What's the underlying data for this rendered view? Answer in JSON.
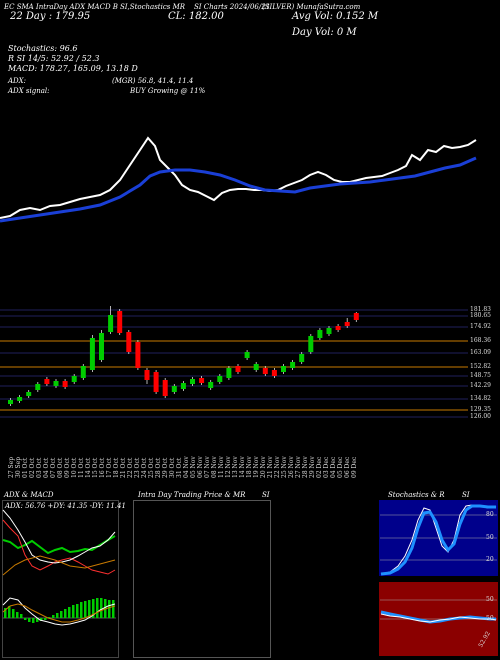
{
  "header": {
    "line1": "EC SMA IntraDay ADX MACD B",
    "line1_b": "SI,Stochastics MR",
    "line1_c": "SI Charts 2024/06/21",
    "line1_d": "(SILVER) MunafaSutra.com",
    "day_label": "22 Day : 179.95",
    "close_label": "CL: 182.00",
    "avg_vol": "Avg Vol: 0.152  M",
    "day_vol": "Day Vol: 0   M"
  },
  "indicators": {
    "stochastics": "Stochastics: 96.6",
    "rsi": "R        SI 14/5: 52.92 / 52.3",
    "macd": "MACD: 178.27, 165.09, 13.18  D",
    "adx": "ADX:",
    "adx_vals": "(MGR) 56.8, 41.4, 11.4",
    "adx_signal": "ADX signal:",
    "adx_signal_val": "BUY Growing @ 11%"
  },
  "price_axis": [
    "181.83",
    "180.65",
    "174.92",
    "168.36",
    "163.09",
    "152.82",
    "148.75",
    "142.29",
    "134.82",
    "129.35",
    "126.00"
  ],
  "dates": [
    "27 Sep",
    "30 Sep",
    "01 Oct",
    "02 Oct",
    "03 Oct",
    "04 Oct",
    "07 Oct",
    "08 Oct",
    "09 Oct",
    "10 Oct",
    "11 Oct",
    "14 Oct",
    "15 Oct",
    "16 Oct",
    "17 Oct",
    "18 Oct",
    "21 Oct",
    "22 Oct",
    "23 Oct",
    "24 Oct",
    "25 Oct",
    "28 Oct",
    "29 Oct",
    "30 Oct",
    "31 Oct",
    "04 Nov",
    "05 Nov",
    "06 Nov",
    "07 Nov",
    "08 Nov",
    "11 Nov",
    "12 Nov",
    "13 Nov",
    "14 Nov",
    "18 Nov",
    "19 Nov",
    "20 Nov",
    "21 Nov",
    "22 Nov",
    "25 Nov",
    "26 Nov",
    "27 Nov",
    "28 Nov",
    "29 Nov",
    "02 Dec",
    "03 Dec",
    "04 Dec",
    "05 Dec",
    "06 Dec",
    "09 Dec"
  ],
  "panels": {
    "adx_macd_title": "ADX  & MACD",
    "adx_small": "ADX: 56.76  +DY: 41.35 -DY: 11.41",
    "intraday_title": "Intra Day Trading Price  & MR",
    "intraday_si": "SI",
    "stoch_title": "Stochastics & R",
    "stoch_si": "SI",
    "stoch_levels": [
      "80",
      "50",
      "20"
    ],
    "rsi_levels": [
      "50",
      "50"
    ],
    "rsi_value": "52.92"
  },
  "colors": {
    "up": "#00cc00",
    "down": "#ff0000",
    "sma": "#1a3fd6",
    "price_line": "#ffffff",
    "level_line": "#c87a00",
    "stoch_bg": "#00008b",
    "rsi_bg": "#8b0000"
  }
}
